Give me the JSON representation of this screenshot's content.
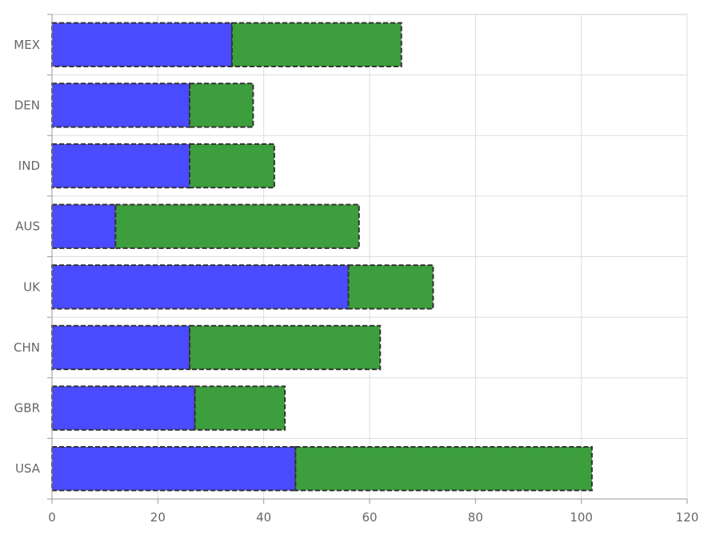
{
  "chart_data": {
    "type": "bar",
    "orientation": "horizontal",
    "stacked": true,
    "categories": [
      "MEX",
      "DEN",
      "IND",
      "AUS",
      "UK",
      "CHN",
      "GBR",
      "USA"
    ],
    "series": [
      {
        "values": [
          34,
          26,
          26,
          12,
          56,
          26,
          27,
          46
        ],
        "color": "#4040ff"
      },
      {
        "values": [
          32,
          12,
          16,
          46,
          16,
          36,
          17,
          56
        ],
        "color": "#339933"
      }
    ],
    "xlim": [
      0,
      120
    ],
    "x_ticks": [
      "0",
      "20",
      "40",
      "60",
      "80",
      "100",
      "120"
    ],
    "grid": true,
    "legend": "none",
    "title": "",
    "xlabel": "",
    "ylabel": ""
  }
}
